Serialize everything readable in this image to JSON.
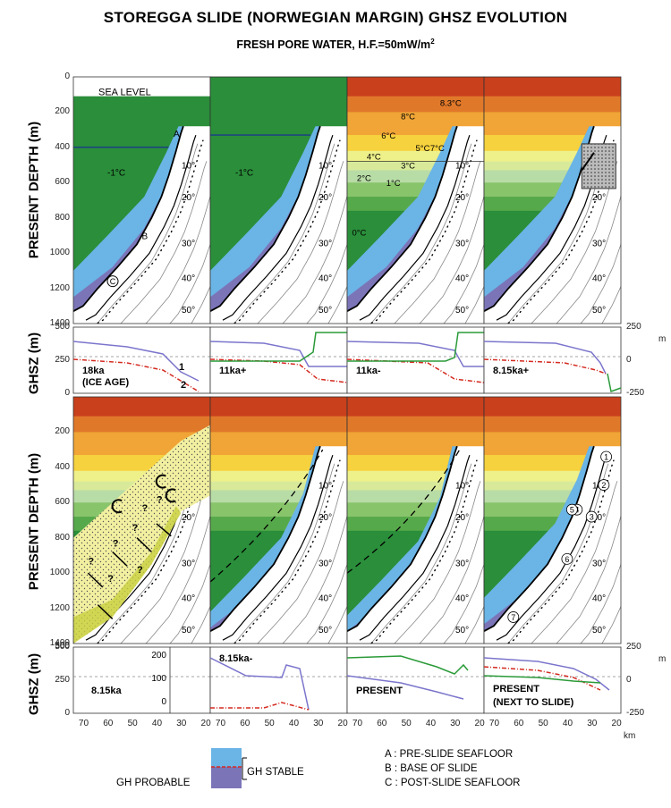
{
  "title": "STOREGGA SLIDE (NORWEGIAN MARGIN) GHSZ EVOLUTION",
  "subtitle": "FRESH PORE WATER, H.F.=50mW/m",
  "subtitle_sup": "2",
  "axes": {
    "depth_label": "PRESENT DEPTH (m)",
    "ghsz_label": "GHSZ (m)",
    "depth_ticks": [
      "0",
      "200",
      "400",
      "600",
      "800",
      "1000",
      "1200",
      "1400"
    ],
    "ghsz_left_ticks": [
      "500",
      "250",
      "0"
    ],
    "ghsz_right_ticks": [
      "250",
      "0",
      "-250"
    ],
    "ghsz_right_unit": "m",
    "km_ticks": [
      "70",
      "60",
      "50",
      "40",
      "30",
      "20"
    ],
    "km_unit": "km",
    "inset_ticks": [
      "200",
      "100",
      "0"
    ]
  },
  "temp_contours": [
    "10°",
    "20°",
    "30°",
    "40°",
    "50°"
  ],
  "panels": [
    {
      "label": "18ka",
      "label2": "(ICE AGE)",
      "sea_level": "SEA LEVEL",
      "water_temp": "-1°C",
      "marks": [
        "A",
        "B",
        "C"
      ],
      "curves": [
        "1",
        "2"
      ]
    },
    {
      "label": "11ka+",
      "water_temp": "-1°C"
    },
    {
      "label": "11ka-",
      "temps": [
        "8.3°C",
        "8°C",
        "7°C",
        "6°C",
        "5°C",
        "4°C",
        "3°C",
        "2°C",
        "1°C",
        "0°C"
      ]
    },
    {
      "label": "8.15ka+"
    },
    {
      "label": "8.15ka",
      "qmarks": [
        "?",
        "?",
        "?",
        "?",
        "?",
        "?",
        "?"
      ]
    },
    {
      "label": "8.15ka-"
    },
    {
      "label": "PRESENT"
    },
    {
      "label": "PRESENT",
      "label2": "(NEXT TO SLIDE)",
      "circles": [
        "1",
        "2",
        "3",
        "4",
        "5",
        "6",
        "7"
      ]
    }
  ],
  "legend": {
    "stable_label": "GH STABLE",
    "probable_label": "GH PROBABLE",
    "notes": [
      "A : PRE-SLIDE SEAFLOOR",
      "B : BASE OF SLIDE",
      "C : POST-SLIDE SEAFLOOR"
    ]
  },
  "colors": {
    "gh_stable": "#6ab4e6",
    "gh_probable": "#7b75b8",
    "cold_water": "#2a8e3a",
    "bands": [
      "#c8401c",
      "#e0782a",
      "#f0a536",
      "#f6d23e",
      "#eef08a",
      "#d8ea9a",
      "#b8dca6",
      "#88c46a",
      "#56a94a",
      "#2a8e3a"
    ],
    "curve_purple": "#7b75cc",
    "curve_red": "#d42a20",
    "curve_green": "#2a9a38"
  }
}
